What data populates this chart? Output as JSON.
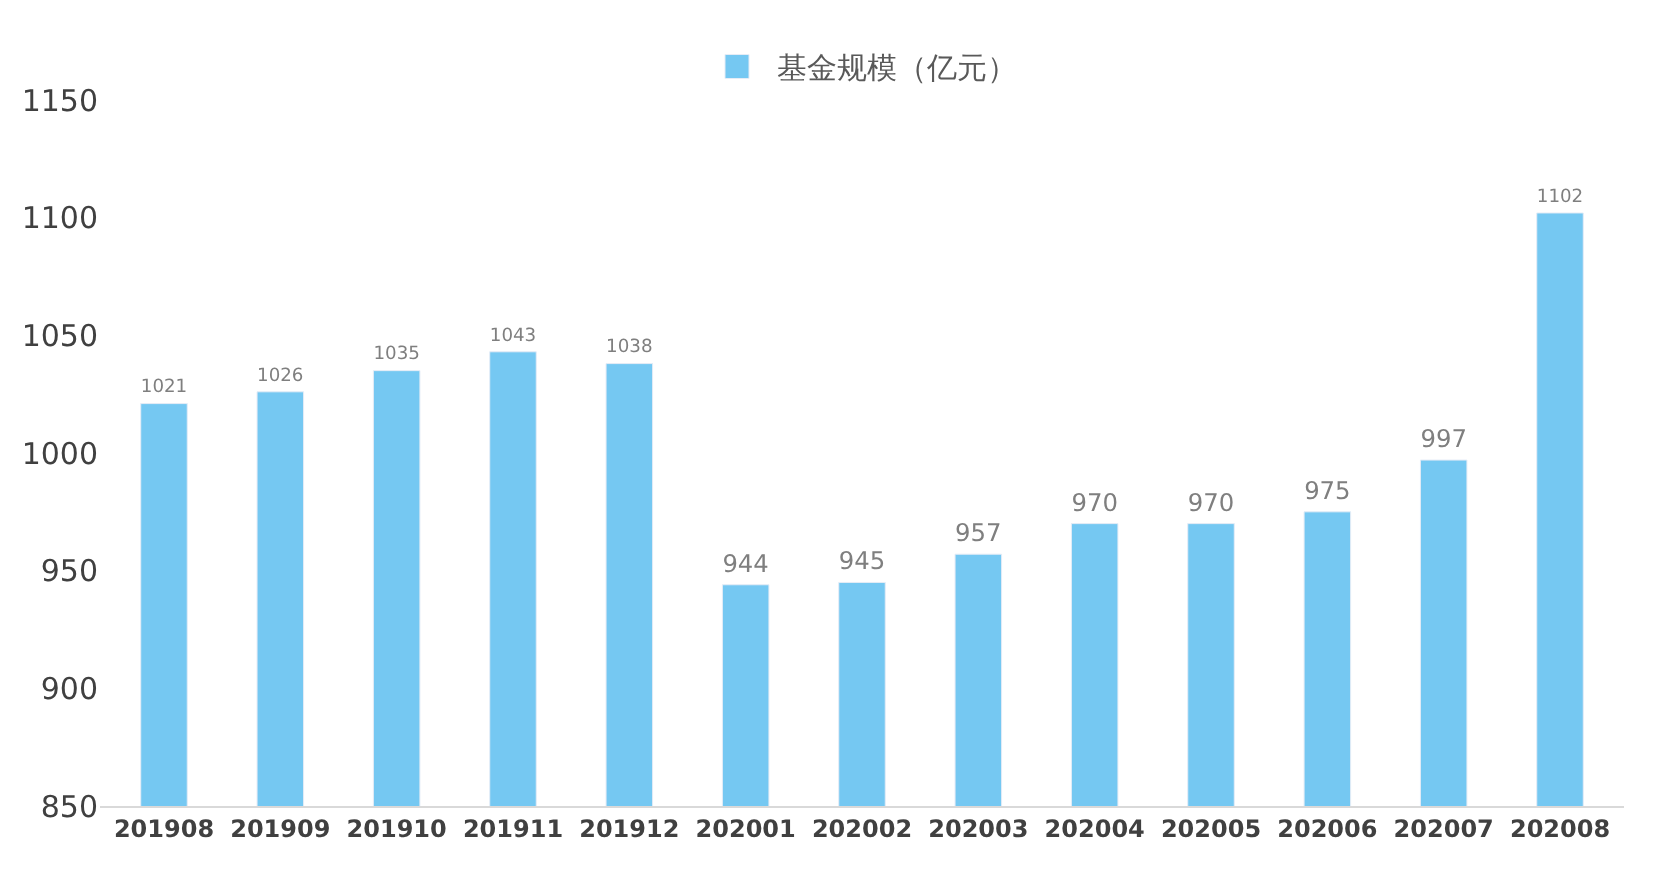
{
  "chart_data": {
    "type": "bar",
    "categories": [
      "201908",
      "201909",
      "201910",
      "201911",
      "201912",
      "202001",
      "202002",
      "202003",
      "202004",
      "202005",
      "202006",
      "202007",
      "202008"
    ],
    "series": [
      {
        "name": "基金规模（亿元）",
        "color": "#75c8f2",
        "values": [
          1021,
          1026,
          1035,
          1043,
          1038,
          944,
          945,
          957,
          970,
          970,
          975,
          997,
          1102
        ]
      }
    ],
    "ylim": [
      850,
      1150
    ],
    "yticks": [
      850,
      900,
      950,
      1000,
      1050,
      1100,
      1150
    ],
    "data_labels": true,
    "grid": false,
    "legend": "top"
  }
}
